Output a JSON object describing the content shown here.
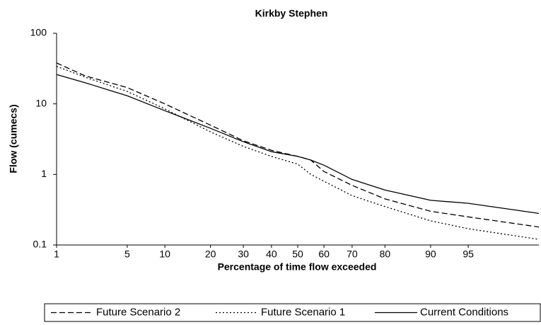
{
  "chart_data": {
    "type": "line",
    "title": "Kirkby Stephen",
    "x_label": "Percentage of time flow exceeded",
    "y_label": "Flow (cumecs)",
    "xscale": "probit",
    "yscale": "log",
    "xlim": [
      1,
      99
    ],
    "ylim": [
      0.1,
      100
    ],
    "xticks": [
      1,
      5,
      10,
      20,
      30,
      40,
      50,
      60,
      70,
      80,
      90,
      95
    ],
    "yticks": [
      0.1,
      1,
      10,
      100
    ],
    "x": [
      1,
      2,
      5,
      10,
      20,
      30,
      40,
      50,
      55,
      60,
      70,
      80,
      90,
      95,
      99
    ],
    "series": [
      {
        "name": "Future Scenario 2",
        "color": "#000000",
        "line_style": "dashed",
        "values": [
          38,
          25,
          17,
          10,
          5,
          3,
          2.2,
          1.8,
          1.6,
          1.1,
          0.7,
          0.45,
          0.3,
          0.25,
          0.18
        ]
      },
      {
        "name": "Future Scenario 1",
        "color": "#000000",
        "line_style": "dotted",
        "values": [
          34,
          24,
          15,
          8.5,
          4,
          2.5,
          1.8,
          1.4,
          1.0,
          0.8,
          0.5,
          0.35,
          0.22,
          0.17,
          0.12
        ]
      },
      {
        "name": "Current Conditions",
        "color": "#000000",
        "line_style": "solid",
        "values": [
          26,
          20,
          13,
          8,
          4.5,
          2.9,
          2.1,
          1.8,
          1.6,
          1.35,
          0.85,
          0.6,
          0.43,
          0.39,
          0.28
        ]
      }
    ],
    "legend": "bottom"
  }
}
